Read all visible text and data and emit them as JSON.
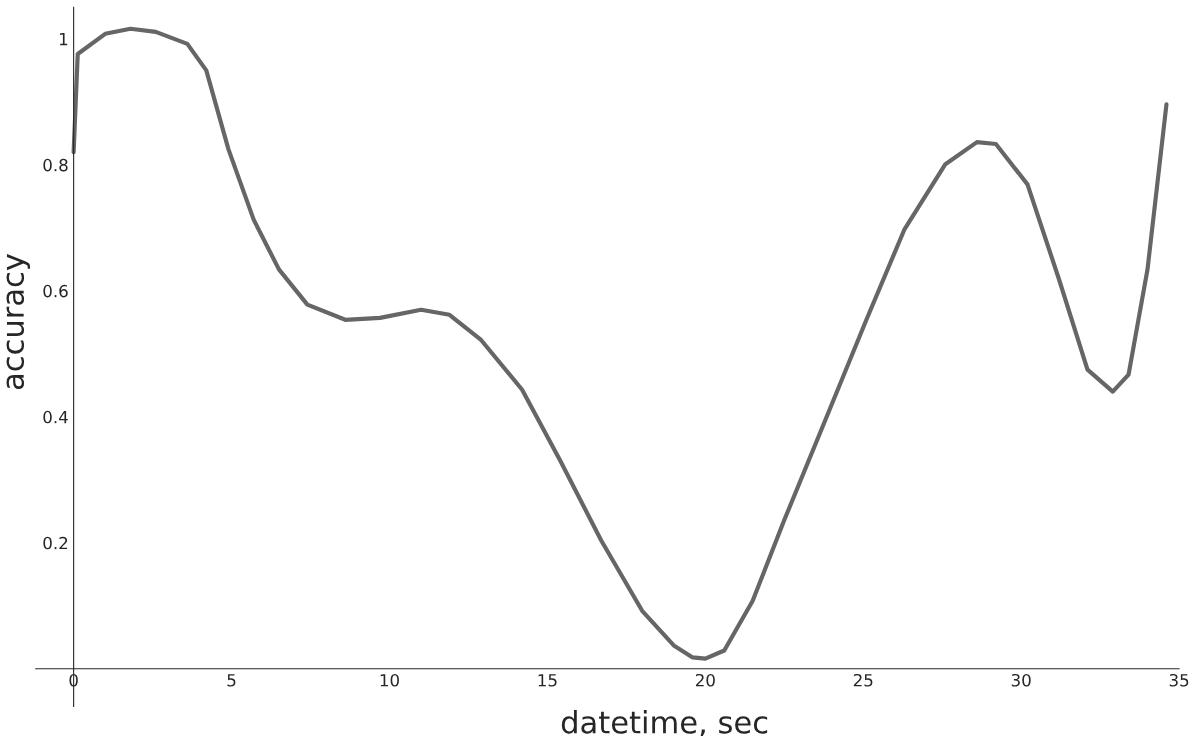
{
  "chart_data": {
    "type": "line",
    "xlabel": "datetime, sec",
    "ylabel": "accuracy",
    "xlim": [
      -1.2,
      35
    ],
    "ylim": [
      -0.06,
      1.05
    ],
    "xticks": [
      0,
      5,
      10,
      15,
      20,
      25,
      30,
      35
    ],
    "yticks": [
      0.2,
      0.4,
      0.6,
      0.8,
      1
    ],
    "grid": false,
    "legend": false,
    "series": [
      {
        "color": "#666666",
        "x": [
          0,
          0.13,
          1.0,
          1.8,
          2.6,
          3.6,
          4.2,
          4.9,
          5.7,
          6.5,
          7.4,
          8.6,
          9.7,
          11.0,
          11.9,
          12.9,
          14.2,
          15.4,
          16.7,
          18.0,
          19.0,
          19.6,
          20.0,
          20.6,
          21.5,
          22.5,
          23.8,
          25.1,
          26.3,
          27.6,
          28.6,
          29.2,
          30.2,
          31.2,
          32.1,
          32.9,
          33.4,
          34.0,
          34.6
        ],
        "values": [
          0.82,
          0.976,
          1.008,
          1.016,
          1.011,
          0.992,
          0.95,
          0.825,
          0.713,
          0.634,
          0.578,
          0.554,
          0.557,
          0.57,
          0.562,
          0.522,
          0.443,
          0.331,
          0.204,
          0.092,
          0.037,
          0.018,
          0.016,
          0.029,
          0.108,
          0.236,
          0.395,
          0.554,
          0.697,
          0.801,
          0.836,
          0.833,
          0.769,
          0.618,
          0.475,
          0.44,
          0.467,
          0.634,
          0.896
        ]
      }
    ]
  }
}
